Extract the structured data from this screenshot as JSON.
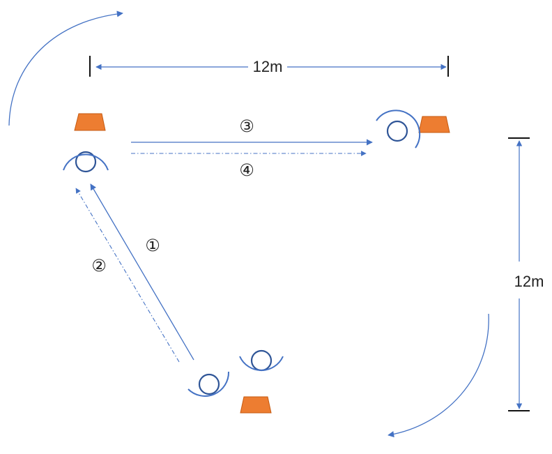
{
  "colors": {
    "line": "#4472C4",
    "player": "#2F5597",
    "cone": "#ED7D31",
    "text": "#222222"
  },
  "labels": {
    "horizontal_distance": "12m",
    "vertical_distance": "12m",
    "pass_1": "①",
    "pass_2": "②",
    "pass_3": "③",
    "pass_4": "④"
  },
  "elements": {
    "cones": [
      "cone-top-left",
      "cone-top-right",
      "cone-bottom"
    ],
    "players": [
      "player-top-left",
      "player-top-right",
      "player-bottom-left",
      "player-bottom-right"
    ]
  }
}
